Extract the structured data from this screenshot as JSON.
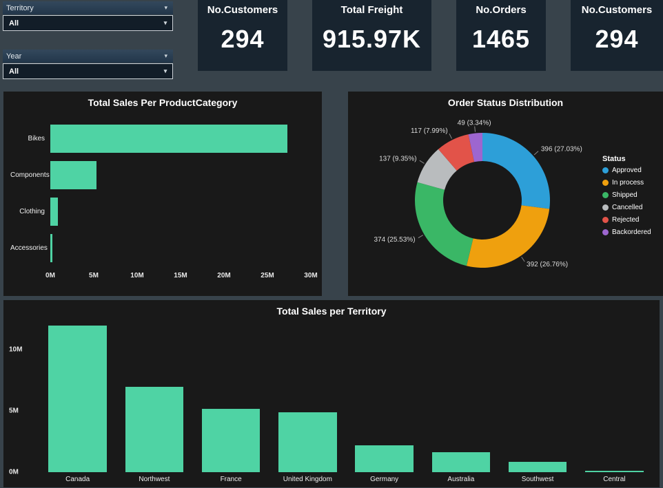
{
  "icons": {
    "chevron_down": "▾"
  },
  "colors": {
    "page_bg": "#38434b",
    "card_bg": "#18242f",
    "panel_bg": "#191919",
    "bar_green": "#4fd3a4",
    "text": "#ffffff"
  },
  "slicers": [
    {
      "label": "Territory",
      "value": "All"
    },
    {
      "label": "Year",
      "value": "All"
    }
  ],
  "kpis": [
    {
      "title": "No.Customers",
      "value": "294"
    },
    {
      "title": "Total Freight",
      "value": "915.97K"
    },
    {
      "title": "No.Orders",
      "value": "1465"
    },
    {
      "title": "No.Customers",
      "value": "294"
    }
  ],
  "chart_data": [
    {
      "type": "bar",
      "orientation": "horizontal",
      "title": "Total Sales Per ProductCategory",
      "categories": [
        "Bikes",
        "Components",
        "Clothing",
        "Accessories"
      ],
      "values": [
        27300000,
        5300000,
        850000,
        270000
      ],
      "xlim": [
        0,
        30000000
      ],
      "x_ticks": [
        {
          "label": "0M",
          "value": 0
        },
        {
          "label": "5M",
          "value": 5000000
        },
        {
          "label": "10M",
          "value": 10000000
        },
        {
          "label": "15M",
          "value": 15000000
        },
        {
          "label": "20M",
          "value": 20000000
        },
        {
          "label": "25M",
          "value": 25000000
        },
        {
          "label": "30M",
          "value": 30000000
        }
      ],
      "bar_color": "#4fd3a4",
      "grid": false
    },
    {
      "type": "pie",
      "donut": true,
      "title": "Order Status Distribution",
      "legend_title": "Status",
      "legend_position": "right",
      "slices": [
        {
          "label": "Approved",
          "value": 396,
          "pct": "27.03%",
          "color": "#2d9fd8"
        },
        {
          "label": "In process",
          "value": 392,
          "pct": "26.76%",
          "color": "#efa00e"
        },
        {
          "label": "Shipped",
          "value": 374,
          "pct": "25.53%",
          "color": "#3ab766"
        },
        {
          "label": "Cancelled",
          "value": 137,
          "pct": "9.35%",
          "color": "#b9bcbe"
        },
        {
          "label": "Rejected",
          "value": 117,
          "pct": "7.99%",
          "color": "#e25349"
        },
        {
          "label": "Backordered",
          "value": 49,
          "pct": "3.34%",
          "color": "#9d66cf"
        }
      ]
    },
    {
      "type": "bar",
      "orientation": "vertical",
      "title": "Total Sales per Territory",
      "categories": [
        "Canada",
        "Northwest",
        "France",
        "United Kingdom",
        "Germany",
        "Australia",
        "Southwest",
        "Central"
      ],
      "values": [
        12000000,
        7000000,
        5200000,
        4900000,
        2200000,
        1650000,
        850000,
        80000
      ],
      "ylim": [
        0,
        12500000
      ],
      "y_ticks": [
        {
          "label": "0M",
          "value": 0
        },
        {
          "label": "5M",
          "value": 5000000
        },
        {
          "label": "10M",
          "value": 10000000
        }
      ],
      "bar_color": "#4fd3a4",
      "grid": false
    }
  ]
}
